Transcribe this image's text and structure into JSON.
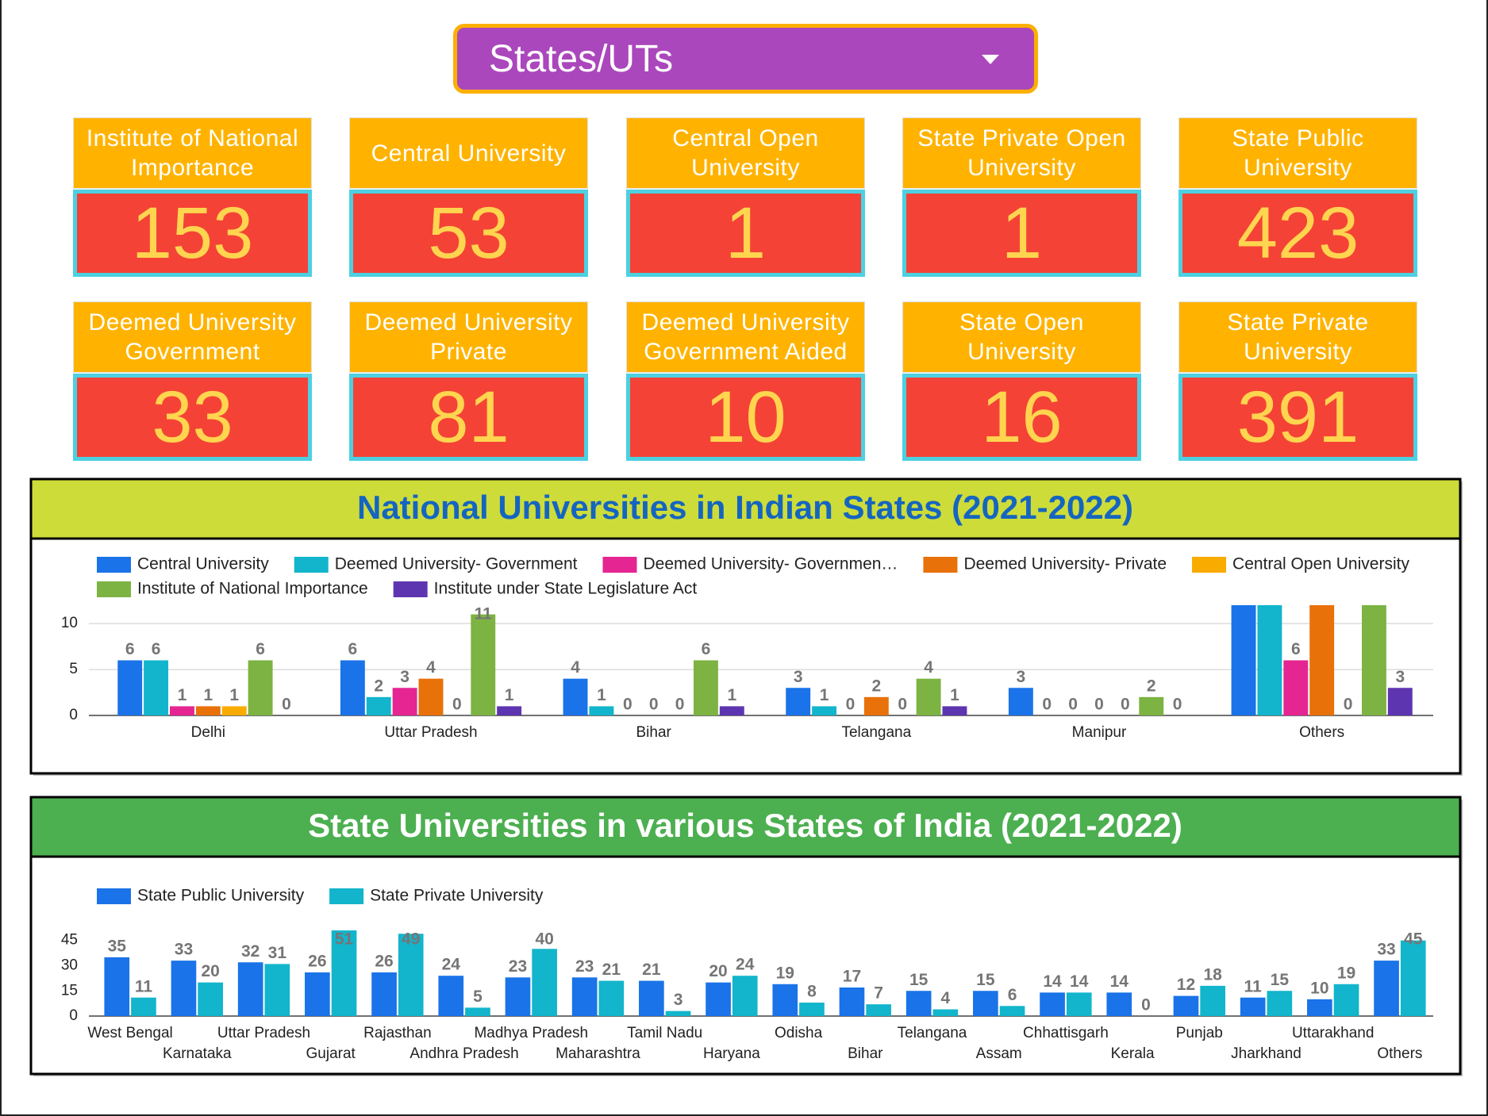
{
  "dropdown": {
    "label": "States/UTs"
  },
  "cards": [
    {
      "title": "Institute of National Importance",
      "value": 153
    },
    {
      "title": "Central University",
      "value": 53
    },
    {
      "title": "Central Open University",
      "value": 1
    },
    {
      "title": "State Private Open University",
      "value": 1
    },
    {
      "title": "State Public University",
      "value": 423
    },
    {
      "title": "Deemed University Government",
      "value": 33
    },
    {
      "title": "Deemed University Private",
      "value": 81
    },
    {
      "title": "Deemed University Government Aided",
      "value": 10
    },
    {
      "title": "State Open University",
      "value": 16
    },
    {
      "title": "State Private University",
      "value": 391
    }
  ],
  "chart_data": [
    {
      "type": "bar",
      "title": "National Universities in Indian States (2021-2022)",
      "categories": [
        "Delhi",
        "Uttar Pradesh",
        "Bihar",
        "Telangana",
        "Manipur",
        "Others"
      ],
      "series": [
        {
          "name": "Central University",
          "color": "#1a73e8",
          "values": [
            6,
            6,
            4,
            3,
            3,
            13
          ]
        },
        {
          "name": "Deemed University- Government",
          "color": "#12b5cb",
          "values": [
            6,
            2,
            1,
            1,
            0,
            13
          ]
        },
        {
          "name": "Deemed University- Governmen…",
          "color": "#e52592",
          "values": [
            1,
            3,
            0,
            0,
            0,
            6
          ]
        },
        {
          "name": "Deemed University- Private",
          "color": "#e8710a",
          "values": [
            1,
            4,
            0,
            2,
            0,
            13
          ]
        },
        {
          "name": "Central Open University",
          "color": "#f9ab00",
          "values": [
            1,
            0,
            0,
            0,
            0,
            0
          ]
        },
        {
          "name": "Institute of National Importance",
          "color": "#7cb342",
          "values": [
            6,
            11,
            6,
            4,
            2,
            13
          ]
        },
        {
          "name": "Institute under State Legislature Act",
          "color": "#5e35b1",
          "values": [
            0,
            1,
            1,
            1,
            0,
            3
          ]
        }
      ],
      "ylim": [
        0,
        12
      ],
      "yticks": [
        0,
        5,
        10
      ],
      "grid": true,
      "legend": "top"
    },
    {
      "type": "bar",
      "title": "State Universities in various States of India (2021-2022)",
      "categories": [
        "West Bengal",
        "Karnataka",
        "Uttar Pradesh",
        "Gujarat",
        "Rajasthan",
        "Andhra Pradesh",
        "Madhya Pradesh",
        "Maharashtra",
        "Tamil Nadu",
        "Haryana",
        "Odisha",
        "Bihar",
        "Telangana",
        "Assam",
        "Chhattisgarh",
        "Kerala",
        "Punjab",
        "Jharkhand",
        "Uttarakhand",
        "Others"
      ],
      "series": [
        {
          "name": "State Public University",
          "color": "#1a73e8",
          "values": [
            35,
            33,
            32,
            26,
            26,
            24,
            23,
            23,
            21,
            20,
            19,
            17,
            15,
            15,
            14,
            14,
            12,
            11,
            10,
            33
          ]
        },
        {
          "name": "State Private University",
          "color": "#12b5cb",
          "values": [
            11,
            20,
            31,
            51,
            49,
            5,
            40,
            21,
            3,
            24,
            8,
            7,
            4,
            6,
            14,
            0,
            18,
            15,
            19,
            45
          ]
        }
      ],
      "ylim": [
        0,
        51
      ],
      "yticks": [
        0,
        15,
        30,
        45
      ],
      "grid": false,
      "legend": "top"
    }
  ]
}
